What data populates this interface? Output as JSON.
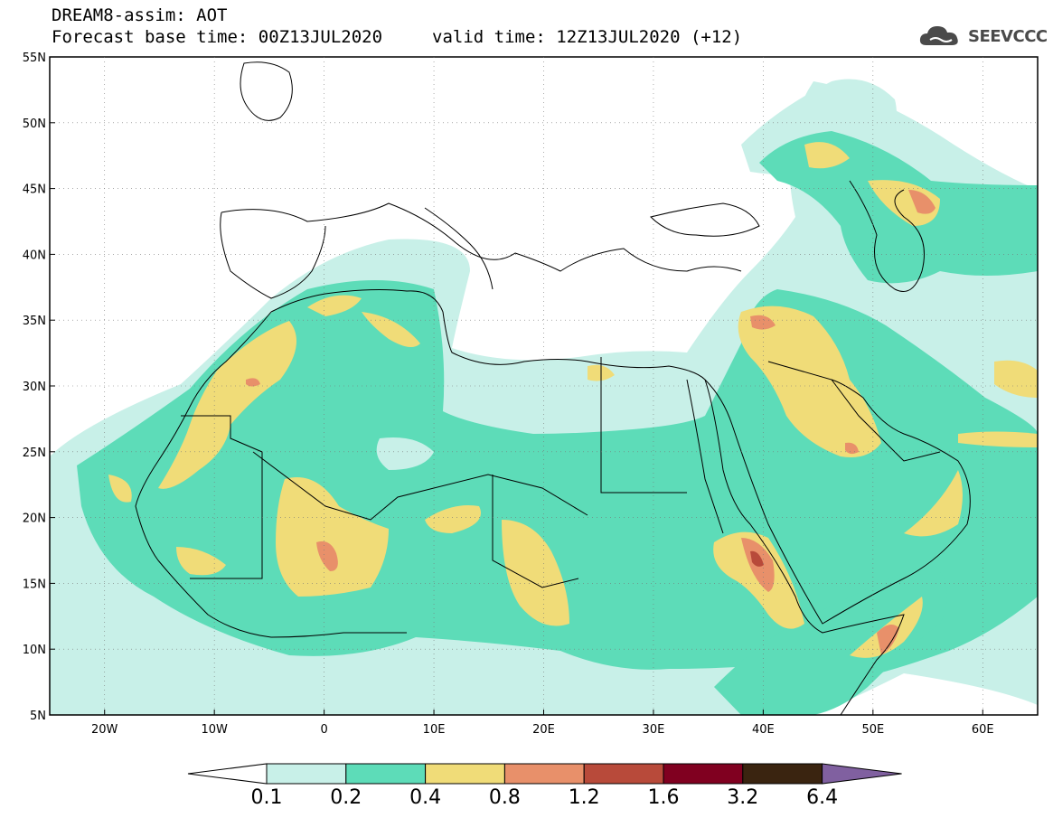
{
  "header": {
    "title": "DREAM8-assim: AOT",
    "base_time": "Forecast base time: 00Z13JUL2020",
    "valid_time": "valid time: 12Z13JUL2020 (+12)",
    "logo_text": "SEEVCCC"
  },
  "map": {
    "projection": "lat-lon",
    "lon_range": [
      -25,
      65
    ],
    "lat_range": [
      5,
      55
    ],
    "lat_ticks": [
      "55N",
      "50N",
      "45N",
      "40N",
      "35N",
      "30N",
      "25N",
      "20N",
      "15N",
      "10N",
      "5N"
    ],
    "lon_ticks": [
      "20W",
      "10W",
      "0",
      "10E",
      "20E",
      "30E",
      "40E",
      "50E",
      "60E"
    ]
  },
  "legend": {
    "levels": [
      "0.1",
      "0.2",
      "0.4",
      "0.8",
      "1.2",
      "1.6",
      "3.2",
      "6.4"
    ],
    "colors": [
      "#c8f0e8",
      "#5ddcb8",
      "#f0dc78",
      "#e8906a",
      "#b84a3a",
      "#800020",
      "#3a2410",
      "#8060a0"
    ]
  },
  "colors": {
    "land_outline": "#000000",
    "background": "#ffffff"
  }
}
